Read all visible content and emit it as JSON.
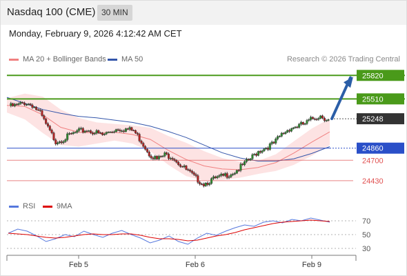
{
  "header": {
    "title": "Nasdaq 100 (CME)",
    "timeframe": "30 MIN"
  },
  "datetime": "Monday, February 9, 2026 4:12:42 AM CET",
  "legend": {
    "ma20_bb": "MA 20 + Bollinger Bands",
    "ma50": "MA 50",
    "credit": "Research © 2026 Trading Central",
    "rsi": "RSI",
    "rsi_ma": "9MA"
  },
  "colors": {
    "ma20": "#f08080",
    "band_fill": "#fde3e3",
    "ma50": "#3355aa",
    "resistance": "#4a9a1a",
    "support": "#2a4fc8",
    "target_line": "#e05050",
    "current_label_bg": "#333333",
    "arrow": "#2b5ea7",
    "rsi_line": "#5577dd",
    "rsi_ma_line": "#dd0000"
  },
  "chart_data": {
    "type": "candlestick",
    "title": "Nasdaq 100 (CME)",
    "interval": "30 MIN",
    "x_ticks": [
      "Feb 5",
      "Feb 6",
      "Feb 9"
    ],
    "ylim": [
      24220,
      25950
    ],
    "levels": [
      {
        "value": 25820,
        "label": "25820",
        "kind": "resistance"
      },
      {
        "value": 25510,
        "label": "25510",
        "kind": "resistance"
      },
      {
        "value": 25248,
        "label": "25248",
        "kind": "current"
      },
      {
        "value": 24860,
        "label": "24860",
        "kind": "pivot"
      },
      {
        "value": 24700,
        "label": "24700",
        "kind": "support"
      },
      {
        "value": 24430,
        "label": "24430",
        "kind": "support"
      }
    ],
    "price_path": [
      25420,
      25430,
      25470,
      25440,
      25330,
      25130,
      24960,
      24990,
      25050,
      25090,
      25110,
      25080,
      25040,
      25090,
      25130,
      25120,
      25100,
      24960,
      24800,
      24720,
      24780,
      24760,
      24650,
      24560,
      24470,
      24400,
      24450,
      24480,
      24520,
      24560,
      24640,
      24730,
      24830,
      24880,
      24930,
      25050,
      25130,
      25160,
      25190,
      25260,
      25300,
      25240
    ],
    "ma50": [
      25530,
      25450,
      25370,
      25320,
      25280,
      25260,
      25230,
      25200,
      25150,
      25080,
      25000,
      24900,
      24800,
      24730,
      24690,
      24690,
      24720,
      24790,
      24880
    ],
    "ma20_upper": [
      25520,
      25580,
      25540,
      25370,
      25260,
      25200,
      25180,
      25160,
      25130,
      25020,
      24930,
      24820,
      24730,
      24680,
      24690,
      24780,
      24950,
      25120,
      25250
    ],
    "ma20_lower": [
      25330,
      25240,
      25060,
      24900,
      24880,
      24920,
      24960,
      24920,
      24820,
      24640,
      24490,
      24430,
      24440,
      24470,
      24520,
      24560,
      24640,
      24760,
      24900
    ],
    "rsi": {
      "ylim": [
        20,
        80
      ],
      "ticks": [
        70,
        50,
        30
      ],
      "rsi_values": [
        52,
        58,
        55,
        48,
        40,
        44,
        50,
        47,
        55,
        50,
        46,
        52,
        56,
        50,
        45,
        38,
        42,
        48,
        40,
        36,
        45,
        52,
        49,
        55,
        60,
        64,
        62,
        68,
        70,
        67,
        72,
        70,
        74,
        71,
        68
      ],
      "ma_values": [
        52,
        51,
        50,
        48,
        46,
        45,
        46,
        48,
        50,
        51,
        50,
        50,
        51,
        51,
        49,
        46,
        44,
        44,
        43,
        41,
        42,
        45,
        48,
        50,
        53,
        57,
        60,
        63,
        66,
        68,
        69,
        70,
        71,
        70,
        69
      ]
    }
  }
}
